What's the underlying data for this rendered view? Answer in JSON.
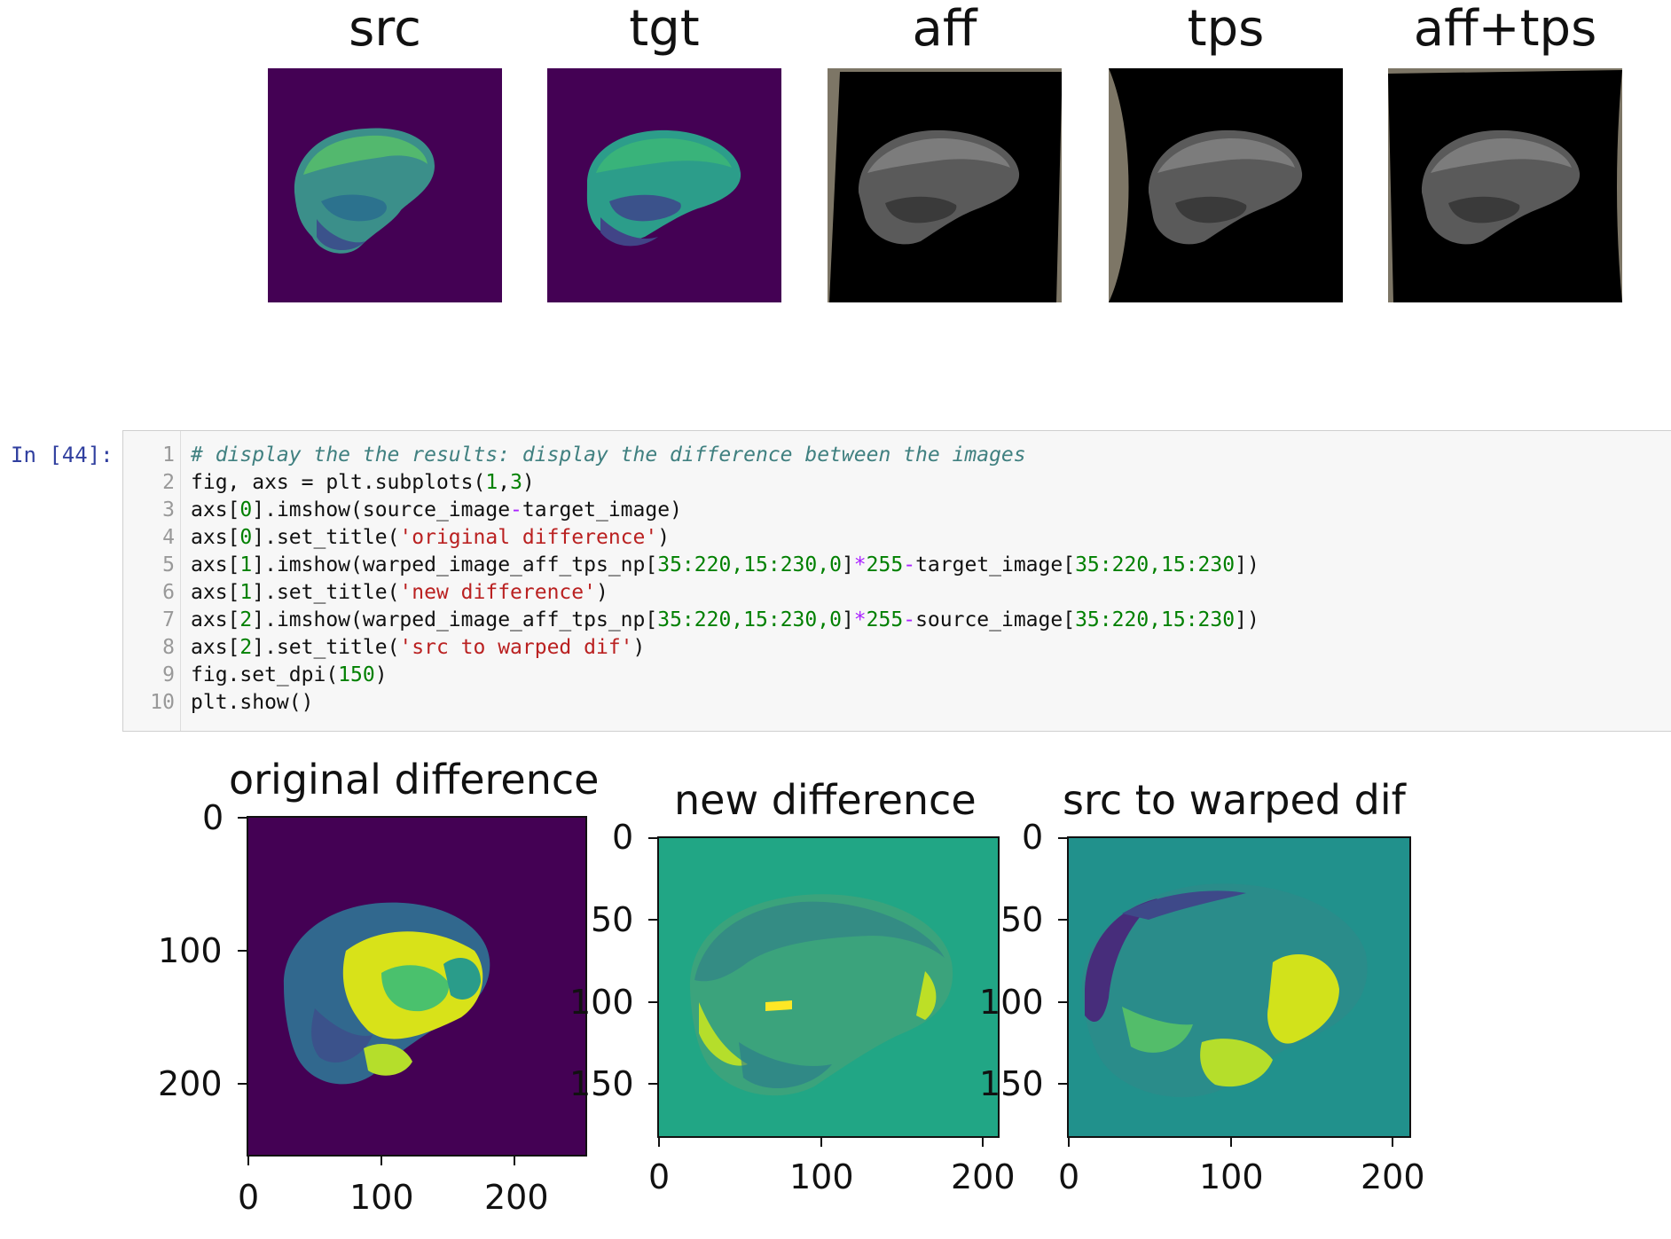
{
  "top_figure": {
    "panels": [
      {
        "title": "src",
        "style": "viridis"
      },
      {
        "title": "tgt",
        "style": "viridis"
      },
      {
        "title": "aff",
        "style": "gray"
      },
      {
        "title": "tps",
        "style": "gray"
      },
      {
        "title": "aff+tps",
        "style": "gray"
      }
    ]
  },
  "cell": {
    "prompt": "In [44]:",
    "lines": [
      "1",
      "2",
      "3",
      "4",
      "5",
      "6",
      "7",
      "8",
      "9",
      "10"
    ],
    "code": {
      "l1_comment": "# display the the results: display the difference between the images",
      "l2_a": "fig, axs = plt.subplots(",
      "l2_n1": "1",
      "l2_c": ",",
      "l2_n2": "3",
      "l2_e": ")",
      "l3_a": "axs[",
      "l3_n": "0",
      "l3_b": "].imshow(source_image",
      "l3_op": "-",
      "l3_c": "target_image)",
      "l4_a": "axs[",
      "l4_n": "0",
      "l4_b": "].set_title(",
      "l4_s": "'original difference'",
      "l4_e": ")",
      "l5_a": "axs[",
      "l5_n": "1",
      "l5_b": "].imshow(warped_image_aff_tps_np[",
      "l5_i": "35:220,15:230,0",
      "l5_c": "]",
      "l5_op": "*",
      "l5_n2": "255",
      "l5_op2": "-",
      "l5_d": "target_image[",
      "l5_i2": "35:220,15:230",
      "l5_e": "])",
      "l6_a": "axs[",
      "l6_n": "1",
      "l6_b": "].set_title(",
      "l6_s": "'new difference'",
      "l6_e": ")",
      "l7_a": "axs[",
      "l7_n": "2",
      "l7_b": "].imshow(warped_image_aff_tps_np[",
      "l7_i": "35:220,15:230,0",
      "l7_c": "]",
      "l7_op": "*",
      "l7_n2": "255",
      "l7_op2": "-",
      "l7_d": "source_image[",
      "l7_i2": "35:220,15:230",
      "l7_e": "])",
      "l8_a": "axs[",
      "l8_n": "2",
      "l8_b": "].set_title(",
      "l8_s": "'src to warped dif'",
      "l8_e": ")",
      "l9_a": "fig.set_dpi(",
      "l9_n": "150",
      "l9_e": ")",
      "l10": "plt.show()"
    }
  },
  "bottom_figure": {
    "axes": [
      {
        "title": "original difference",
        "yticks": [
          "0",
          "100",
          "200"
        ],
        "xticks": [
          "0",
          "100",
          "200"
        ],
        "background": "#440154"
      },
      {
        "title": "new difference",
        "yticks": [
          "0",
          "50",
          "100",
          "150"
        ],
        "xticks": [
          "0",
          "100",
          "200"
        ],
        "background": "#21a685"
      },
      {
        "title": "src to warped dif",
        "yticks": [
          "0",
          "50",
          "100",
          "150"
        ],
        "xticks": [
          "0",
          "100",
          "200"
        ],
        "background": "#21918c"
      }
    ]
  },
  "colors": {
    "viridis_dark": "#440154",
    "viridis_teal": "#21918c",
    "viridis_green": "#5ec962",
    "viridis_yellow": "#fde725",
    "warp_border": "#7d7666",
    "prompt_blue": "#303F9F"
  }
}
